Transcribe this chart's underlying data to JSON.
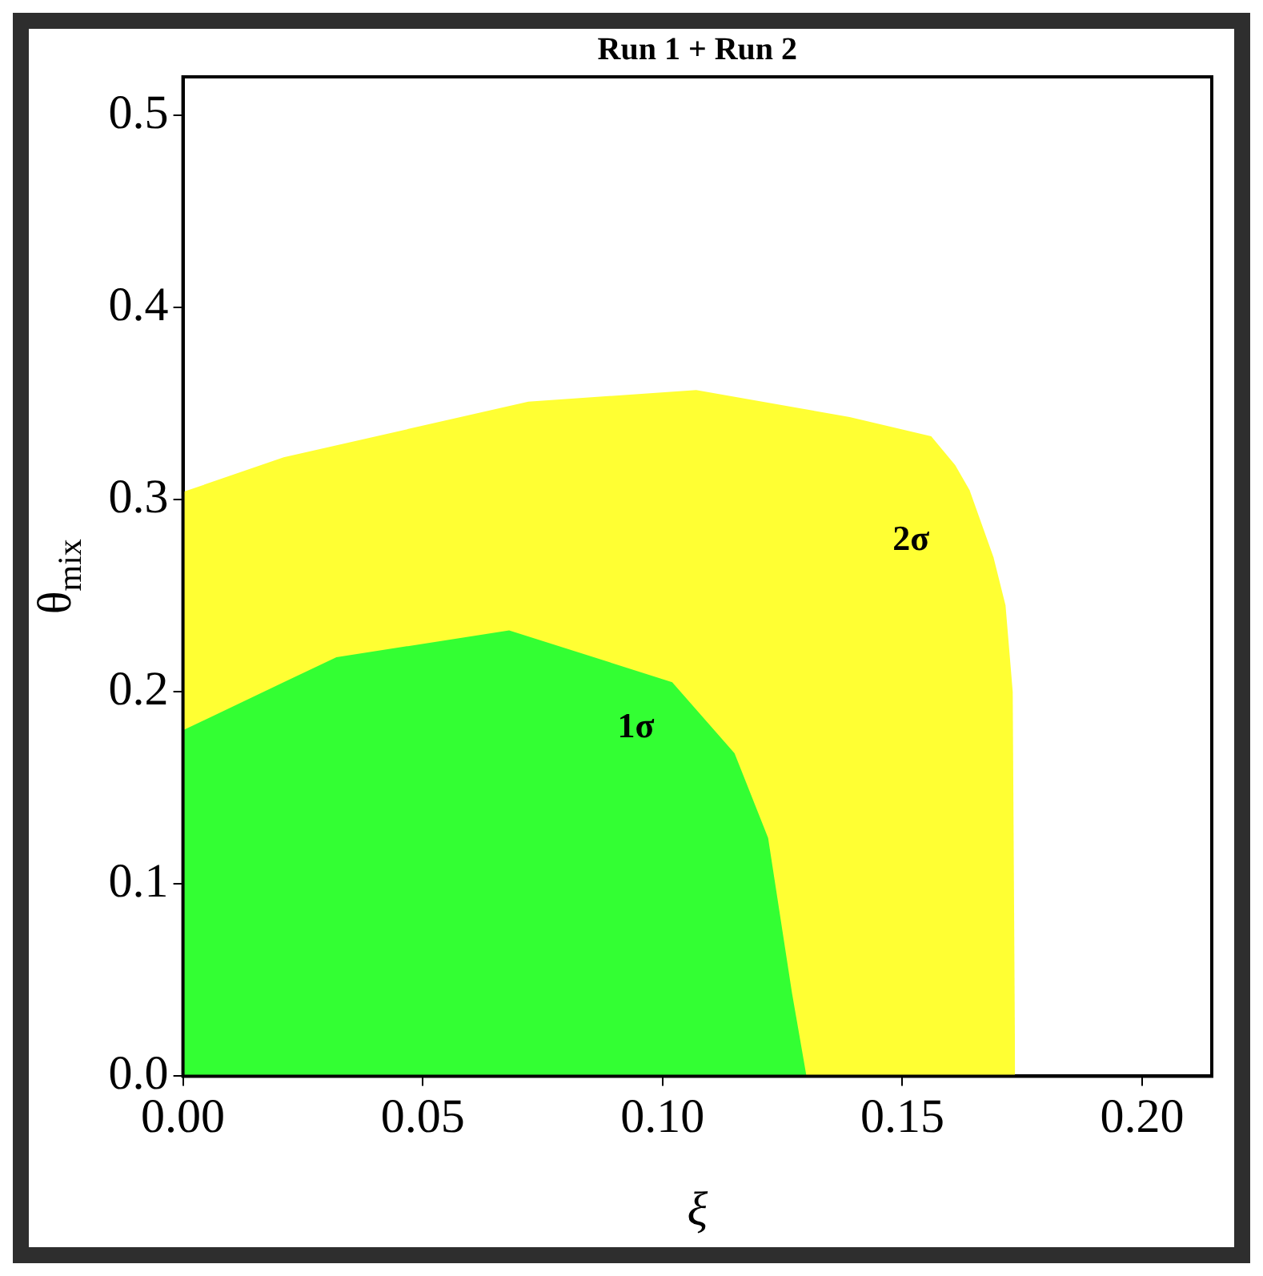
{
  "chart_data": {
    "type": "area",
    "title": "Run 1 + Run 2",
    "xlabel": "ξ",
    "ylabel": "θ$_{mix}$",
    "xlim": [
      0,
      0.2145
    ],
    "ylim": [
      0,
      0.52
    ],
    "xticks": [
      {
        "value": 0,
        "label": "0.00"
      },
      {
        "value": 0.05,
        "label": "0.05"
      },
      {
        "value": 0.1,
        "label": "0.10"
      },
      {
        "value": 0.15,
        "label": "0.15"
      },
      {
        "value": 0.2,
        "label": "0.20"
      }
    ],
    "yticks": [
      {
        "value": 0,
        "label": "0.0"
      },
      {
        "value": 0.1,
        "label": "0.1"
      },
      {
        "value": 0.2,
        "label": "0.2"
      },
      {
        "value": 0.3,
        "label": "0.3"
      },
      {
        "value": 0.4,
        "label": "0.4"
      },
      {
        "value": 0.5,
        "label": "0.5"
      }
    ],
    "series": [
      {
        "name": "2σ",
        "color": "#ffff33",
        "x": [
          0,
          0.021,
          0.072,
          0.107,
          0.139,
          0.156,
          0.161,
          0.164,
          0.169,
          0.1715,
          0.173,
          0.1735
        ],
        "values": [
          0.304,
          0.322,
          0.351,
          0.357,
          0.343,
          0.333,
          0.318,
          0.305,
          0.27,
          0.245,
          0.2,
          0
        ]
      },
      {
        "name": "1σ",
        "color": "#33ff33",
        "x": [
          0,
          0.021,
          0.032,
          0.068,
          0.102,
          0.115,
          0.122,
          0.127,
          0.13
        ],
        "values": [
          0.18,
          0.205,
          0.218,
          0.232,
          0.205,
          0.168,
          0.124,
          0.043,
          0
        ]
      }
    ],
    "grid": false,
    "legend": false
  }
}
